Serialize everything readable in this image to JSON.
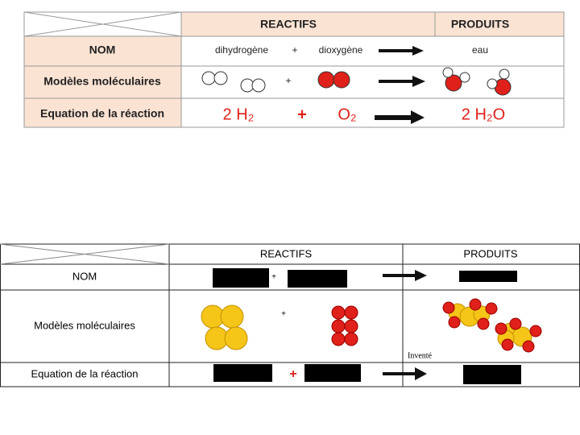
{
  "top_table": {
    "header": [
      "REACTIFS",
      "PRODUITS"
    ],
    "rows": [
      {
        "label": "NOM",
        "reactant1": "dihydrogène",
        "plus": "+",
        "reactant2": "dioxygène",
        "product": "eau"
      },
      {
        "label": "Modèles moléculaires",
        "plus": "+"
      },
      {
        "label": "Equation de la réaction",
        "reactant1": "2 H₂",
        "plus": "+",
        "reactant2": "O₂",
        "product": "2 H₂O"
      }
    ]
  },
  "bottom_table": {
    "header": [
      "REACTIFS",
      "PRODUITS"
    ],
    "rows": [
      {
        "label": "NOM",
        "plus": "+"
      },
      {
        "label": "Modèles moléculaires",
        "plus": "+",
        "note": "Inventé"
      },
      {
        "label": "Equation de la réaction",
        "plus": "+"
      }
    ]
  }
}
